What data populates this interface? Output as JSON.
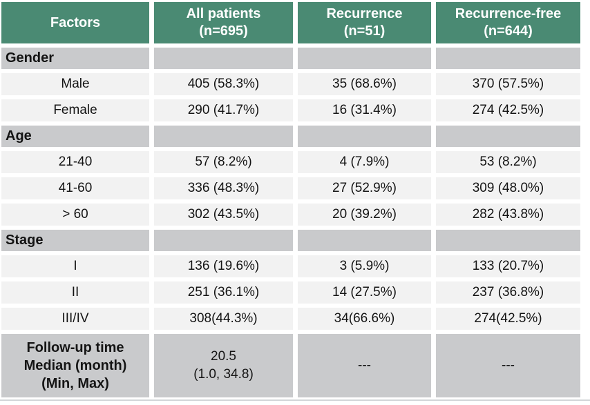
{
  "table": {
    "colors": {
      "header_bg": "#4A8A73",
      "section_row_bg": "#C9CACC",
      "data_row_bg": "#F2F2F2",
      "header_text": "#FFFFFF",
      "body_text": "#141414"
    },
    "header": [
      [
        "Factors"
      ],
      [
        "All patients",
        "(n=695)"
      ],
      [
        "Recurrence",
        "(n=51)"
      ],
      [
        "Recurrence-free",
        "(n=644)"
      ]
    ],
    "sections": [
      {
        "label": "Gender",
        "rows": [
          {
            "factor": "Male",
            "all": "405 (58.3%)",
            "recurrence": "35 (68.6%)",
            "recurrence_free": "370 (57.5%)"
          },
          {
            "factor": "Female",
            "all": "290 (41.7%)",
            "recurrence": "16 (31.4%)",
            "recurrence_free": "274 (42.5%)"
          }
        ]
      },
      {
        "label": "Age",
        "rows": [
          {
            "factor": "21-40",
            "all": "57 (8.2%)",
            "recurrence": "4 (7.9%)",
            "recurrence_free": "53 (8.2%)"
          },
          {
            "factor": "41-60",
            "all": "336 (48.3%)",
            "recurrence": "27 (52.9%)",
            "recurrence_free": "309 (48.0%)"
          },
          {
            "factor": "> 60",
            "all": "302 (43.5%)",
            "recurrence": "20 (39.2%)",
            "recurrence_free": "282 (43.8%)"
          }
        ]
      },
      {
        "label": "Stage",
        "rows": [
          {
            "factor": "I",
            "all": "136 (19.6%)",
            "recurrence": "3 (5.9%)",
            "recurrence_free": "133 (20.7%)"
          },
          {
            "factor": "II",
            "all": "251 (36.1%)",
            "recurrence": "14 (27.5%)",
            "recurrence_free": "237 (36.8%)"
          },
          {
            "factor": "III/IV",
            "all": "308(44.3%)",
            "recurrence": "34(66.6%)",
            "recurrence_free": "274(42.5%)"
          }
        ]
      }
    ],
    "footer": {
      "factor_lines": [
        "Follow-up time",
        "Median (month)",
        "(Min, Max)"
      ],
      "all_lines": [
        "20.5",
        "(1.0, 34.8)"
      ],
      "recurrence": "---",
      "recurrence_free": "---"
    }
  }
}
